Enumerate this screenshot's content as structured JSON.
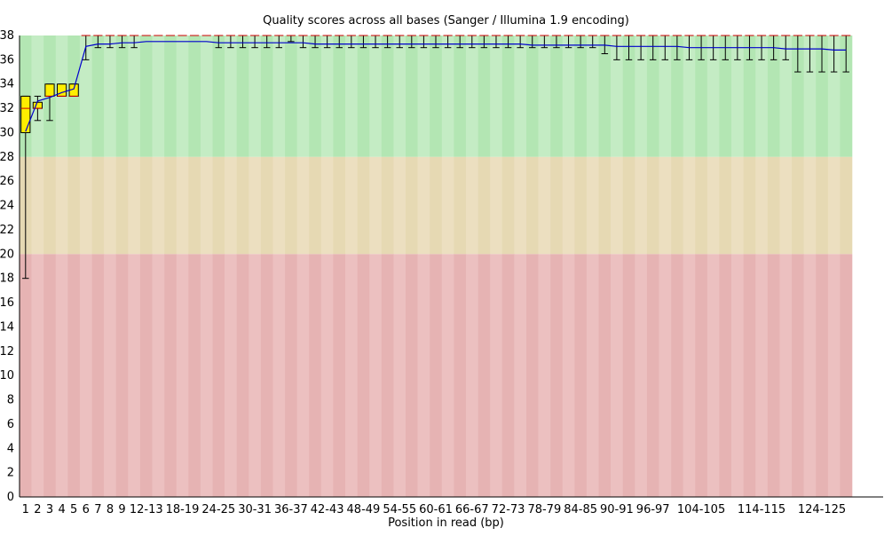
{
  "chart_data": {
    "type": "box",
    "title": "Quality scores across all bases (Sanger / Illumina 1.9 encoding)",
    "xlabel": "Position in read (bp)",
    "ylabel": "",
    "ylim": [
      0,
      38
    ],
    "yticks": [
      0,
      2,
      4,
      6,
      8,
      10,
      12,
      14,
      16,
      18,
      20,
      22,
      24,
      26,
      28,
      30,
      32,
      34,
      36,
      38
    ],
    "bands": [
      {
        "from": 28,
        "to": 38,
        "color": "#b3e6b3",
        "stripe": "#c4ecc4"
      },
      {
        "from": 20,
        "to": 28,
        "color": "#e6d9b3",
        "stripe": "#ecdfc0"
      },
      {
        "from": 0,
        "to": 20,
        "color": "#e6b3b3",
        "stripe": "#ecc0c0"
      }
    ],
    "colors": {
      "box": "#ffee00",
      "mean_line": "#0000cc",
      "whisker": "#000000",
      "median": "#cc0000"
    },
    "categories": [
      "1",
      "2",
      "3",
      "4",
      "5",
      "6",
      "7",
      "8",
      "9",
      "10-11",
      "12-13",
      "14-15",
      "16-17",
      "18-19",
      "20-21",
      "22-23",
      "24-25",
      "26-27",
      "28-29",
      "30-31",
      "32-33",
      "34-35",
      "36-37",
      "38-39",
      "40-41",
      "42-43",
      "44-45",
      "46-47",
      "48-49",
      "50-51",
      "52-53",
      "54-55",
      "56-57",
      "58-59",
      "60-61",
      "62-63",
      "64-65",
      "66-67",
      "68-69",
      "70-71",
      "72-73",
      "74-75",
      "76-77",
      "78-79",
      "80-81",
      "82-83",
      "84-85",
      "86-87",
      "88-89",
      "90-91",
      "92-93",
      "94-95",
      "96-97",
      "98-99",
      "100-101",
      "102-103",
      "104-105",
      "106-107",
      "108-109",
      "110-111",
      "112-113",
      "114-115",
      "116-117",
      "118-119",
      "120-121",
      "122-123",
      "124-125",
      "126-127",
      "128-129"
    ],
    "tick_labels": [
      "1",
      "2",
      "3",
      "4",
      "5",
      "6",
      "7",
      "8",
      "9",
      "12-13",
      "18-19",
      "24-25",
      "30-31",
      "36-37",
      "42-43",
      "48-49",
      "54-55",
      "60-61",
      "66-67",
      "72-73",
      "78-79",
      "84-85",
      "90-91",
      "96-97",
      "104-105",
      "114-115",
      "124-125"
    ],
    "series": [
      {
        "name": "median",
        "values": [
          32,
          32,
          33,
          33,
          33,
          38,
          38,
          38,
          38,
          38,
          38,
          38,
          38,
          38,
          38,
          38,
          38,
          38,
          38,
          38,
          38,
          38,
          38,
          38,
          38,
          38,
          38,
          38,
          38,
          38,
          38,
          38,
          38,
          38,
          38,
          38,
          38,
          38,
          38,
          38,
          38,
          38,
          38,
          38,
          38,
          38,
          38,
          38,
          38,
          38,
          38,
          38,
          38,
          38,
          38,
          38,
          38,
          38,
          38,
          38,
          38,
          38,
          38,
          38,
          38,
          38,
          38,
          38,
          38
        ]
      },
      {
        "name": "q1",
        "values": [
          30,
          32,
          33,
          33,
          33,
          38,
          38,
          38,
          38,
          38,
          38,
          38,
          38,
          38,
          38,
          38,
          38,
          38,
          38,
          38,
          38,
          38,
          38,
          38,
          38,
          38,
          38,
          38,
          38,
          38,
          38,
          38,
          38,
          38,
          38,
          38,
          38,
          38,
          38,
          38,
          38,
          38,
          38,
          38,
          38,
          38,
          38,
          38,
          38,
          38,
          38,
          38,
          38,
          38,
          38,
          38,
          38,
          38,
          38,
          38,
          38,
          38,
          38,
          38,
          38,
          38,
          38,
          38,
          38
        ]
      },
      {
        "name": "q3",
        "values": [
          33,
          32.5,
          34,
          34,
          34,
          38,
          38,
          38,
          38,
          38,
          38,
          38,
          38,
          38,
          38,
          38,
          38,
          38,
          38,
          38,
          38,
          38,
          38,
          38,
          38,
          38,
          38,
          38,
          38,
          38,
          38,
          38,
          38,
          38,
          38,
          38,
          38,
          38,
          38,
          38,
          38,
          38,
          38,
          38,
          38,
          38,
          38,
          38,
          38,
          38,
          38,
          38,
          38,
          38,
          38,
          38,
          38,
          38,
          38,
          38,
          38,
          38,
          38,
          38,
          38,
          38,
          38,
          38,
          38
        ]
      },
      {
        "name": "lower_whisker",
        "values": [
          18,
          31,
          31,
          33,
          33,
          36,
          37,
          37,
          37,
          37,
          38,
          38,
          38,
          38,
          38,
          38,
          37,
          37,
          37,
          37,
          37,
          37,
          37.5,
          37,
          37,
          37,
          37,
          37,
          37,
          37,
          37,
          37,
          37,
          37,
          37,
          37,
          37,
          37,
          37,
          37,
          37,
          37,
          37,
          37,
          37,
          37,
          37,
          37,
          36.5,
          36,
          36,
          36,
          36,
          36,
          36,
          36,
          36,
          36,
          36,
          36,
          36,
          36,
          36,
          36,
          35,
          35,
          35,
          35,
          35
        ]
      },
      {
        "name": "upper_whisker",
        "values": [
          33,
          33,
          34,
          34,
          34,
          38,
          38,
          38,
          38,
          38,
          38,
          38,
          38,
          38,
          38,
          38,
          38,
          38,
          38,
          38,
          38,
          38,
          38,
          38,
          38,
          38,
          38,
          38,
          38,
          38,
          38,
          38,
          38,
          38,
          38,
          38,
          38,
          38,
          38,
          38,
          38,
          38,
          38,
          38,
          38,
          38,
          38,
          38,
          38,
          38,
          38,
          38,
          38,
          38,
          38,
          38,
          38,
          38,
          38,
          38,
          38,
          38,
          38,
          38,
          38,
          38,
          38,
          38,
          38
        ]
      },
      {
        "name": "mean",
        "values": [
          30.1,
          32.6,
          32.9,
          33.3,
          33.6,
          37.1,
          37.3,
          37.3,
          37.4,
          37.4,
          37.5,
          37.5,
          37.5,
          37.5,
          37.5,
          37.5,
          37.4,
          37.4,
          37.4,
          37.4,
          37.4,
          37.4,
          37.4,
          37.4,
          37.3,
          37.3,
          37.3,
          37.3,
          37.3,
          37.3,
          37.3,
          37.3,
          37.3,
          37.3,
          37.3,
          37.3,
          37.3,
          37.3,
          37.3,
          37.3,
          37.3,
          37.3,
          37.2,
          37.2,
          37.2,
          37.2,
          37.2,
          37.2,
          37.2,
          37.1,
          37.1,
          37.1,
          37.1,
          37.1,
          37.1,
          37.0,
          37.0,
          37.0,
          37.0,
          37.0,
          37.0,
          37.0,
          37.0,
          36.9,
          36.9,
          36.9,
          36.9,
          36.8,
          36.8
        ]
      }
    ]
  }
}
